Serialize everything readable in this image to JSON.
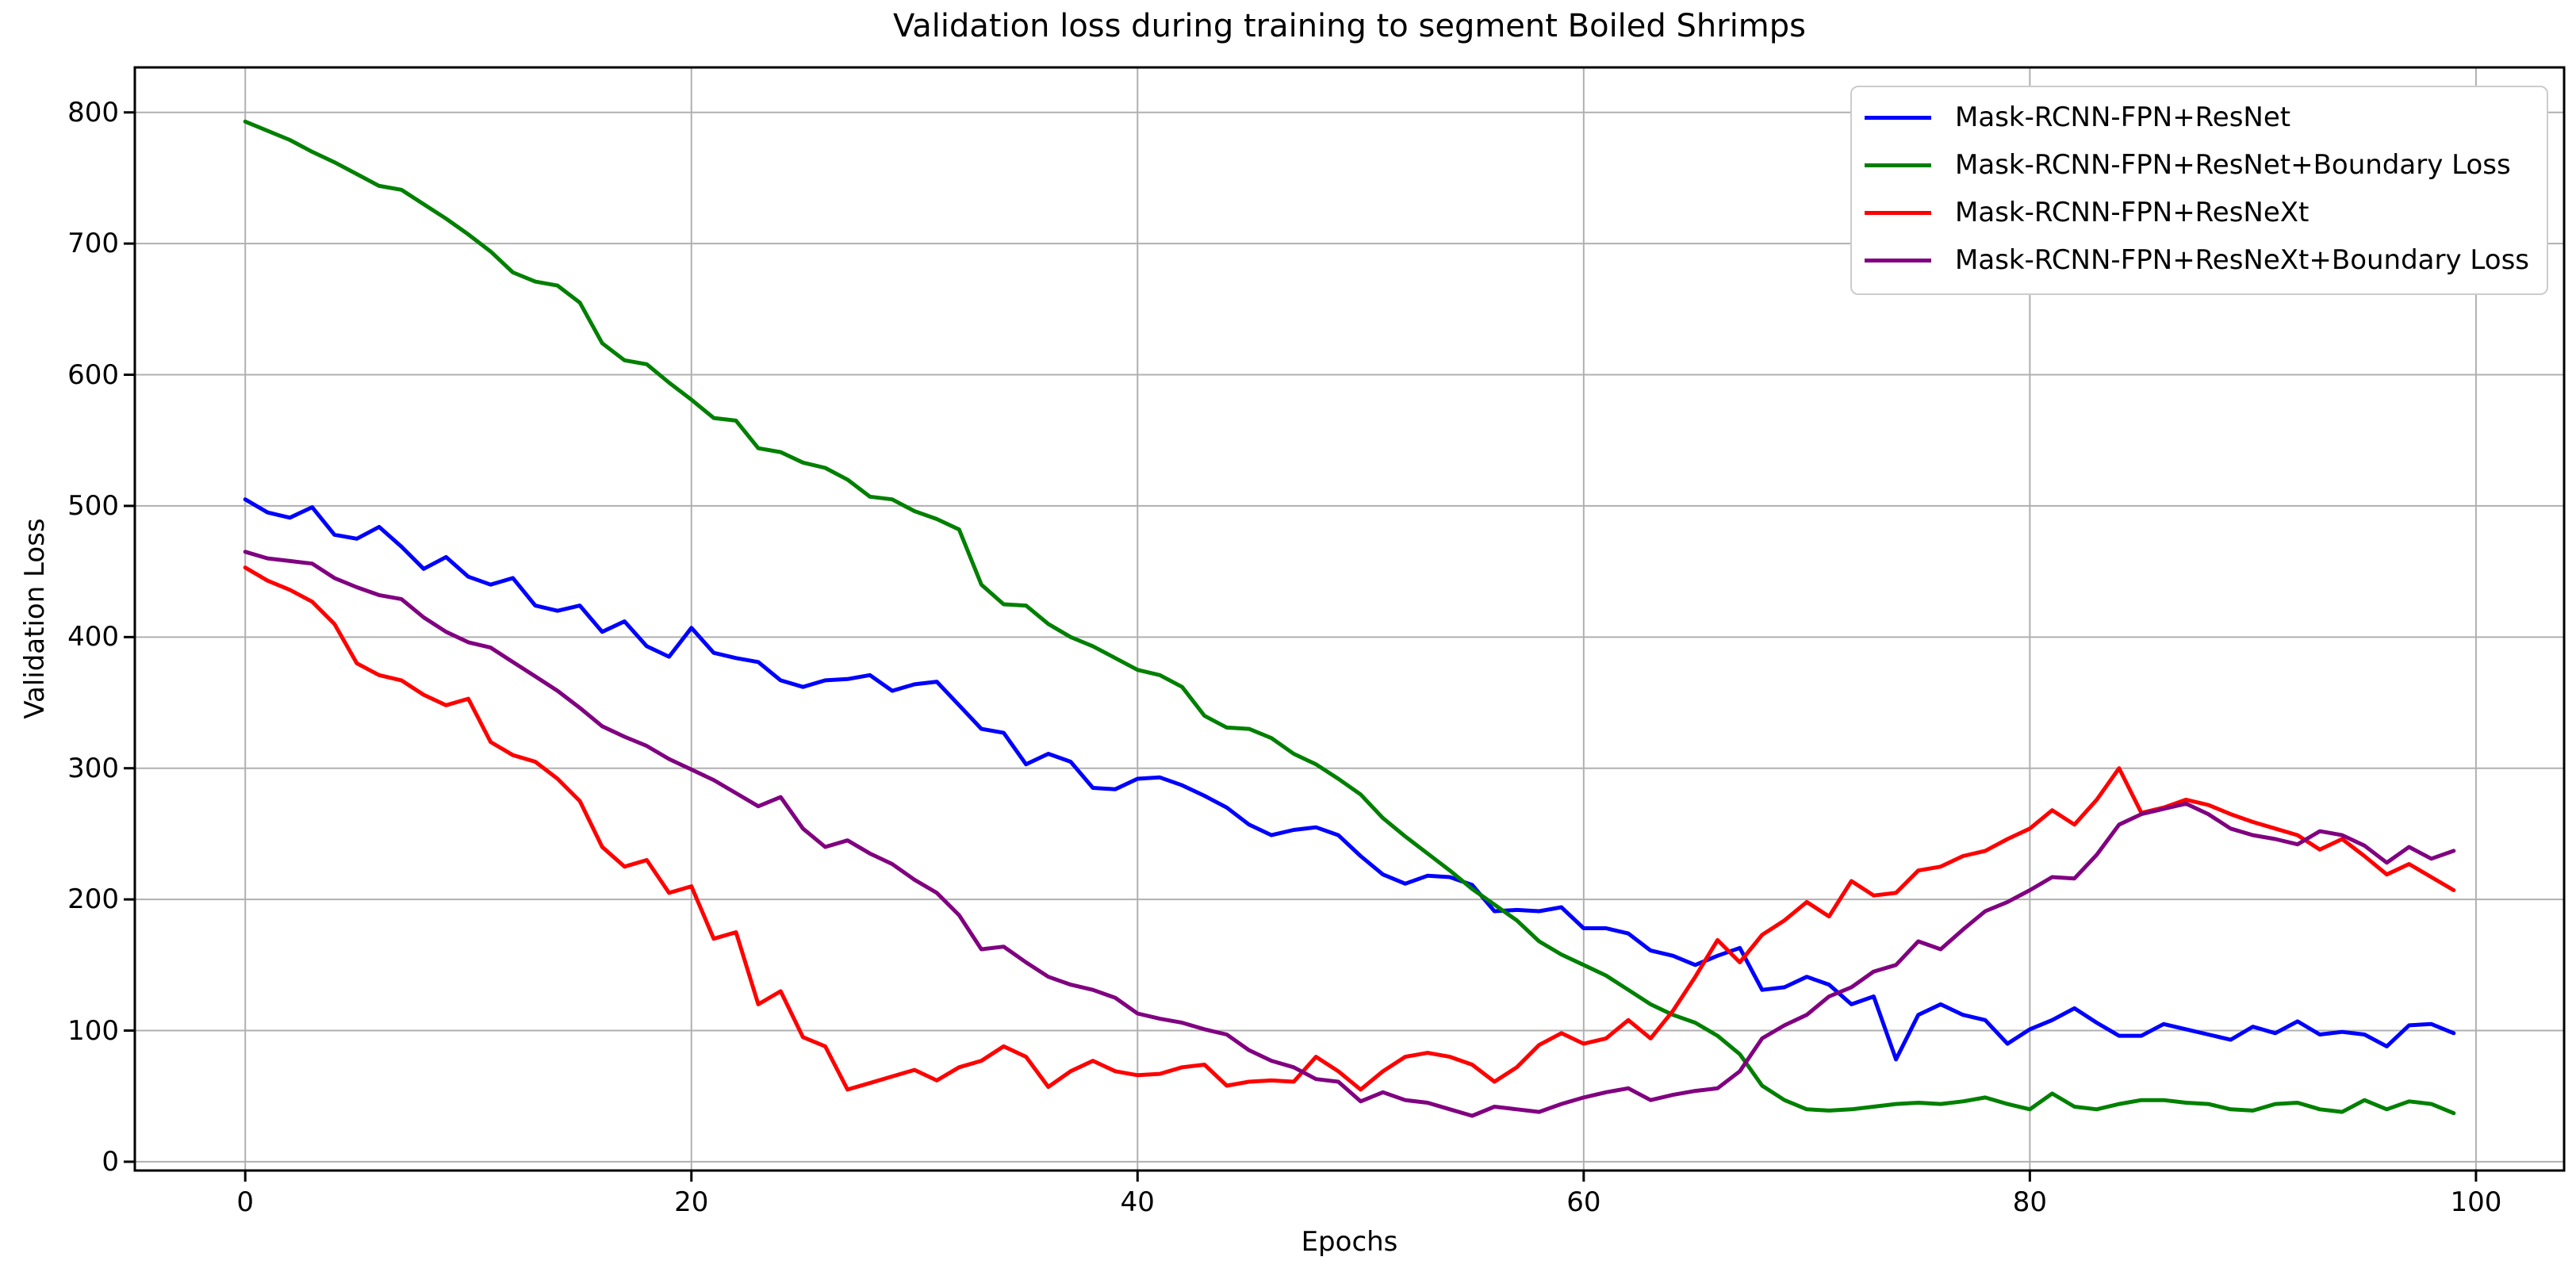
{
  "figure": {
    "background": "#ffffff",
    "spine_color": "#000000",
    "tick_color": "#000000"
  },
  "chart_data": {
    "type": "line",
    "title": "Validation loss during training to segment Boiled Shrimps",
    "xlabel": "Epochs",
    "ylabel": "Validation Loss",
    "x_start": 0,
    "x_step": 1,
    "n_points": 100,
    "xlim": [
      -4.95,
      103.95
    ],
    "ylim": [
      -6.7,
      834.3
    ],
    "x_ticks": [
      0,
      20,
      40,
      60,
      80,
      100
    ],
    "y_ticks": [
      0,
      100,
      200,
      300,
      400,
      500,
      600,
      700,
      800
    ],
    "grid": true,
    "grid_color": "#b0b0b0",
    "legend_position": "upper right",
    "series": [
      {
        "name": "Mask-RCNN-FPN+ResNet",
        "color": "#0000ff",
        "values": [
          505,
          495,
          491,
          499,
          478,
          475,
          484,
          469,
          452,
          461,
          446,
          440,
          445,
          424,
          420,
          424,
          404,
          412,
          393,
          385,
          407,
          388,
          384,
          381,
          367,
          362,
          367,
          368,
          371,
          359,
          364,
          366,
          348,
          330,
          327,
          303,
          311,
          305,
          285,
          284,
          292,
          293,
          287,
          279,
          270,
          257,
          249,
          253,
          255,
          249,
          233,
          219,
          212,
          218,
          217,
          211,
          191,
          192,
          191,
          194,
          178,
          178,
          174,
          161,
          157,
          150,
          157,
          163,
          131,
          133,
          141,
          135,
          120,
          126,
          78,
          112,
          120,
          112,
          108,
          90,
          101,
          108,
          117,
          106,
          96,
          96,
          105,
          101,
          97,
          93,
          103,
          98,
          107,
          97,
          99,
          97,
          88,
          104,
          105,
          98
        ]
      },
      {
        "name": "Mask-RCNN-FPN+ResNet+Boundary Loss",
        "color": "#008000",
        "values": [
          793,
          786,
          779,
          770,
          762,
          753,
          744,
          741,
          730,
          719,
          707,
          694,
          678,
          671,
          668,
          655,
          624,
          611,
          608,
          594,
          581,
          567,
          565,
          544,
          541,
          533,
          529,
          520,
          507,
          505,
          496,
          490,
          482,
          440,
          425,
          424,
          410,
          400,
          393,
          384,
          375,
          371,
          362,
          340,
          331,
          330,
          323,
          311,
          303,
          292,
          280,
          262,
          248,
          235,
          222,
          208,
          196,
          184,
          168,
          158,
          150,
          142,
          131,
          120,
          112,
          106,
          96,
          82,
          58,
          47,
          40,
          39,
          40,
          42,
          44,
          45,
          44,
          46,
          49,
          44,
          40,
          52,
          42,
          40,
          44,
          47,
          47,
          45,
          44,
          40,
          39,
          44,
          45,
          40,
          38,
          47,
          40,
          46,
          44,
          37
        ]
      },
      {
        "name": "Mask-RCNN-FPN+ResNeXt",
        "color": "#ff0000",
        "values": [
          453,
          443,
          436,
          427,
          410,
          380,
          371,
          367,
          356,
          348,
          353,
          320,
          310,
          305,
          292,
          275,
          240,
          225,
          230,
          205,
          210,
          170,
          175,
          120,
          130,
          95,
          88,
          55,
          60,
          65,
          70,
          62,
          72,
          77,
          88,
          80,
          57,
          69,
          77,
          69,
          66,
          67,
          72,
          74,
          58,
          61,
          62,
          61,
          80,
          69,
          55,
          69,
          80,
          83,
          80,
          74,
          61,
          72,
          89,
          98,
          90,
          94,
          108,
          94,
          115,
          141,
          169,
          152,
          173,
          184,
          198,
          187,
          214,
          203,
          205,
          222,
          225,
          233,
          237,
          246,
          254,
          268,
          257,
          276,
          300,
          266,
          270,
          276,
          272,
          265,
          259,
          254,
          249,
          238,
          246,
          233,
          219,
          227,
          217,
          207
        ]
      },
      {
        "name": "Mask-RCNN-FPN+ResNeXt+Boundary Loss",
        "color": "#800080",
        "values": [
          465,
          460,
          458,
          456,
          445,
          438,
          432,
          429,
          415,
          404,
          396,
          392,
          381,
          370,
          359,
          346,
          332,
          324,
          317,
          307,
          299,
          291,
          281,
          271,
          278,
          254,
          240,
          245,
          235,
          227,
          215,
          205,
          188,
          162,
          164,
          152,
          141,
          135,
          131,
          125,
          113,
          109,
          106,
          101,
          97,
          85,
          77,
          72,
          63,
          61,
          46,
          53,
          47,
          45,
          40,
          35,
          42,
          40,
          38,
          44,
          49,
          53,
          56,
          47,
          51,
          54,
          56,
          69,
          94,
          104,
          112,
          126,
          133,
          145,
          150,
          168,
          162,
          177,
          191,
          198,
          207,
          217,
          216,
          234,
          257,
          265,
          269,
          273,
          265,
          254,
          249,
          246,
          242,
          252,
          249,
          241,
          228,
          240,
          231,
          237
        ]
      }
    ]
  }
}
